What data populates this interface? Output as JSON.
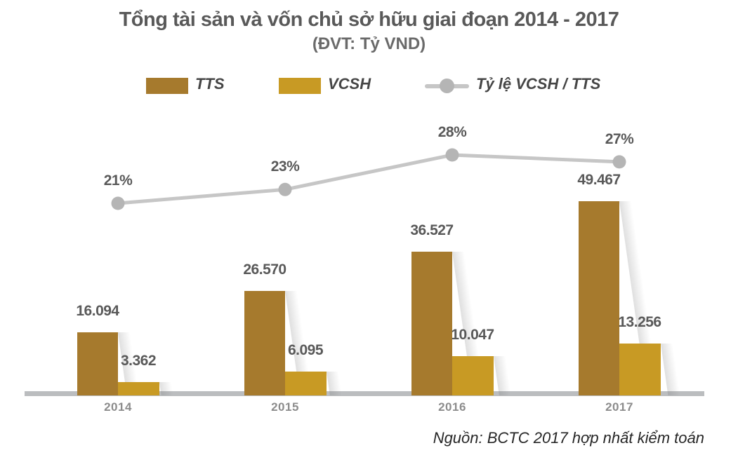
{
  "title": "Tổng tài sản và vốn chủ sở hữu giai đoạn 2014 - 2017",
  "subtitle": "(ĐVT: Tỷ VND)",
  "legend": {
    "tts_label": "TTS",
    "vcsh_label": "VCSH",
    "ratio_label": "Tỷ lệ VCSH / TTS"
  },
  "source": "Nguồn: BCTC 2017 hợp nhất kiểm toán",
  "colors": {
    "tts": "#A67A2D",
    "vcsh": "#C89A24",
    "line": "#C6C6C6",
    "marker": "#B5B5B5",
    "baseline": "#BBBDBF",
    "label_text": "#595959",
    "year_text": "#8C8C8C",
    "source_text": "#262626"
  },
  "chart_data": {
    "type": "bar",
    "subtype": "grouped-bar-with-line",
    "title": "Tổng tài sản và vốn chủ sở hữu giai đoạn 2014 - 2017",
    "unit": "Tỷ VND",
    "categories": [
      "2014",
      "2015",
      "2016",
      "2017"
    ],
    "series": [
      {
        "name": "TTS",
        "type": "bar",
        "values": [
          16094,
          26570,
          36527,
          49467
        ],
        "labels": [
          "16.094",
          "26.570",
          "36.527",
          "49.467"
        ]
      },
      {
        "name": "VCSH",
        "type": "bar",
        "values": [
          3362,
          6095,
          10047,
          13256
        ],
        "labels": [
          "3.362",
          "6.095",
          "10.047",
          "13.256"
        ]
      },
      {
        "name": "Tỷ lệ VCSH / TTS",
        "type": "line",
        "unit": "%",
        "values": [
          21,
          23,
          28,
          27
        ],
        "labels": [
          "21%",
          "23%",
          "28%",
          "27%"
        ]
      }
    ],
    "legend_position": "top",
    "grid": false,
    "y_axis_visible": false
  }
}
